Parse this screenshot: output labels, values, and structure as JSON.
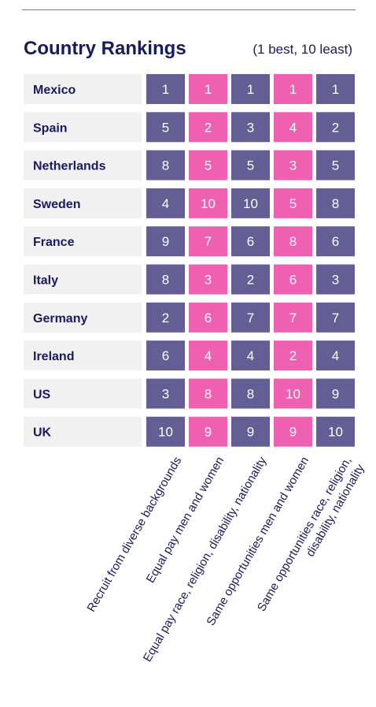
{
  "header": {
    "title": "Country Rankings",
    "subtitle": "(1 best, 10 least)"
  },
  "colors": {
    "purple": "#635e93",
    "pink": "#f060b0",
    "row_bg": "#f1f1f2",
    "text": "#1a1a5e"
  },
  "chart_data": {
    "type": "table",
    "title": "Country Rankings",
    "subtitle": "(1 best, 10 least)",
    "rows": [
      "Mexico",
      "Spain",
      "Netherlands",
      "Sweden",
      "France",
      "Italy",
      "Germany",
      "Ireland",
      "US",
      "UK"
    ],
    "columns": [
      {
        "lines": [
          "Recruit from diverse backgrounds"
        ],
        "color": "#635e93",
        "values": [
          1,
          5,
          8,
          4,
          9,
          8,
          2,
          6,
          3,
          10
        ]
      },
      {
        "lines": [
          "Equal pay men and women"
        ],
        "color": "#f060b0",
        "values": [
          1,
          2,
          5,
          10,
          7,
          3,
          6,
          4,
          8,
          9
        ]
      },
      {
        "lines": [
          "Equal pay race, religion, disability, nationality"
        ],
        "color": "#635e93",
        "values": [
          1,
          3,
          5,
          10,
          6,
          2,
          7,
          4,
          8,
          9
        ]
      },
      {
        "lines": [
          "Same opportunities men and women"
        ],
        "color": "#f060b0",
        "values": [
          1,
          4,
          3,
          5,
          8,
          6,
          7,
          2,
          10,
          9
        ]
      },
      {
        "lines": [
          "Same opportunities race, religion,",
          "disability, nationality"
        ],
        "color": "#635e93",
        "values": [
          1,
          2,
          5,
          8,
          6,
          3,
          7,
          4,
          9,
          10
        ]
      }
    ]
  }
}
